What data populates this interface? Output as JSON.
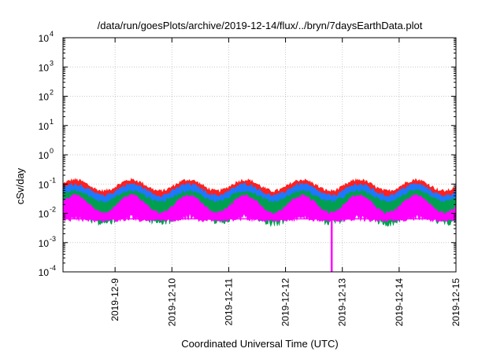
{
  "chart_data": {
    "type": "line",
    "title": "/data/run/goesPlots/archive/2019-12-14/flux/../bryn/7daysEarthData.plot",
    "xlabel": "Coordinated Universal Time (UTC)",
    "ylabel": "cSv/day",
    "y_scale": "log",
    "ylim": [
      0.0001,
      10000
    ],
    "xlim": [
      "2019-12-08T02:00",
      "2019-12-15T00:00"
    ],
    "grid": true,
    "legend": "none",
    "y_ticks": [
      {
        "value": 0.0001,
        "base": "10",
        "exp": "-4"
      },
      {
        "value": 0.001,
        "base": "10",
        "exp": "-3"
      },
      {
        "value": 0.01,
        "base": "10",
        "exp": "-2"
      },
      {
        "value": 0.1,
        "base": "10",
        "exp": "-1"
      },
      {
        "value": 1,
        "base": "10",
        "exp": "0"
      },
      {
        "value": 10,
        "base": "10",
        "exp": "1"
      },
      {
        "value": 100,
        "base": "10",
        "exp": "2"
      },
      {
        "value": 1000,
        "base": "10",
        "exp": "3"
      },
      {
        "value": 10000,
        "base": "10",
        "exp": "4"
      }
    ],
    "x_ticks": [
      "2019-12-9",
      "2019-12-10",
      "2019-12-11",
      "2019-12-12",
      "2019-12-13",
      "2019-12-14",
      "2019-12-15"
    ],
    "series": [
      {
        "color": "#ff2020",
        "peak": 0.12,
        "trough": 0.05
      },
      {
        "color": "#1e78ff",
        "peak": 0.085,
        "trough": 0.035
      },
      {
        "color": "#00a050",
        "peak": 0.05,
        "trough": 0.022
      },
      {
        "color": "#ff00ff",
        "peak": 0.035,
        "trough": 0.009
      }
    ],
    "magenta_floor": 0.0065,
    "dropout": {
      "x": "2019-12-12T19:30",
      "min": 0.0001
    }
  }
}
